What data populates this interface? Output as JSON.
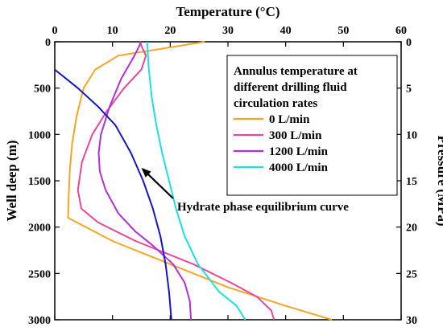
{
  "chart_data": {
    "type": "line",
    "x_top": {
      "label": "Temperature (°C)",
      "range": [
        0,
        60
      ],
      "ticks": [
        "0",
        "10",
        "20",
        "30",
        "40",
        "50",
        "60"
      ]
    },
    "y_left": {
      "label": "Well deep (m)",
      "range": [
        0,
        3000
      ],
      "inverted": true,
      "ticks": [
        "0",
        "500",
        "1000",
        "1500",
        "2000",
        "2500",
        "3000"
      ]
    },
    "y_right": {
      "label": "Pressure (MPa)",
      "range": [
        0,
        30
      ],
      "inverted": true,
      "ticks": [
        "0",
        "5",
        "10",
        "15",
        "20",
        "25",
        "30"
      ]
    },
    "legend": {
      "title": [
        "Annulus temperature at",
        "different drilling fluid",
        "circulation rates"
      ],
      "placement": "top-right"
    },
    "series": [
      {
        "name": "0 L/min",
        "color": "#f5a623",
        "points": [
          [
            26,
            0
          ],
          [
            11,
            150
          ],
          [
            7,
            300
          ],
          [
            5,
            500
          ],
          [
            3.8,
            800
          ],
          [
            3,
            1100
          ],
          [
            2.6,
            1400
          ],
          [
            2.4,
            1700
          ],
          [
            2.3,
            1900
          ],
          [
            10,
            2150
          ],
          [
            20,
            2400
          ],
          [
            30,
            2650
          ],
          [
            40,
            2850
          ],
          [
            48,
            3000
          ]
        ]
      },
      {
        "name": "300 L/min",
        "color": "#e8479a",
        "points": [
          [
            14.7,
            0
          ],
          [
            15.8,
            150
          ],
          [
            15,
            300
          ],
          [
            12,
            500
          ],
          [
            9,
            750
          ],
          [
            6.5,
            1000
          ],
          [
            4.7,
            1300
          ],
          [
            4,
            1600
          ],
          [
            4.6,
            1800
          ],
          [
            7.5,
            1950
          ],
          [
            14,
            2150
          ],
          [
            24,
            2400
          ],
          [
            30.5,
            2600
          ],
          [
            35,
            2750
          ],
          [
            37.5,
            2900
          ],
          [
            38,
            3000
          ]
        ]
      },
      {
        "name": "1200 L/min",
        "color": "#b330d9",
        "points": [
          [
            15,
            0
          ],
          [
            13.8,
            150
          ],
          [
            11.5,
            400
          ],
          [
            9.5,
            700
          ],
          [
            8,
            1000
          ],
          [
            7.6,
            1200
          ],
          [
            7.8,
            1400
          ],
          [
            8.8,
            1600
          ],
          [
            11,
            1850
          ],
          [
            14,
            2050
          ],
          [
            17,
            2200
          ],
          [
            20.5,
            2400
          ],
          [
            22.5,
            2600
          ],
          [
            23.4,
            2800
          ],
          [
            23.6,
            3000
          ]
        ]
      },
      {
        "name": "4000 L/min",
        "color": "#1fe0e0",
        "points": [
          [
            16,
            0
          ],
          [
            16.3,
            300
          ],
          [
            16.8,
            600
          ],
          [
            17.6,
            900
          ],
          [
            18.6,
            1200
          ],
          [
            19.8,
            1500
          ],
          [
            21,
            1800
          ],
          [
            22.5,
            2100
          ],
          [
            24.8,
            2400
          ],
          [
            28.5,
            2700
          ],
          [
            31.5,
            2850
          ],
          [
            33,
            3000
          ]
        ]
      }
    ],
    "curve": {
      "name": "Hydrate phase equilibrium curve",
      "color": "#1515c8",
      "points": [
        [
          0,
          300
        ],
        [
          4,
          500
        ],
        [
          7.5,
          700
        ],
        [
          10.5,
          900
        ],
        [
          13.2,
          1200
        ],
        [
          15.3,
          1500
        ],
        [
          17,
          1800
        ],
        [
          18.3,
          2100
        ],
        [
          19.2,
          2400
        ],
        [
          19.8,
          2700
        ],
        [
          20.2,
          3000
        ]
      ]
    },
    "annotation": {
      "text": "Hydrate phase equilibrium curve",
      "arrow_target": [
        15,
        1360
      ]
    }
  }
}
